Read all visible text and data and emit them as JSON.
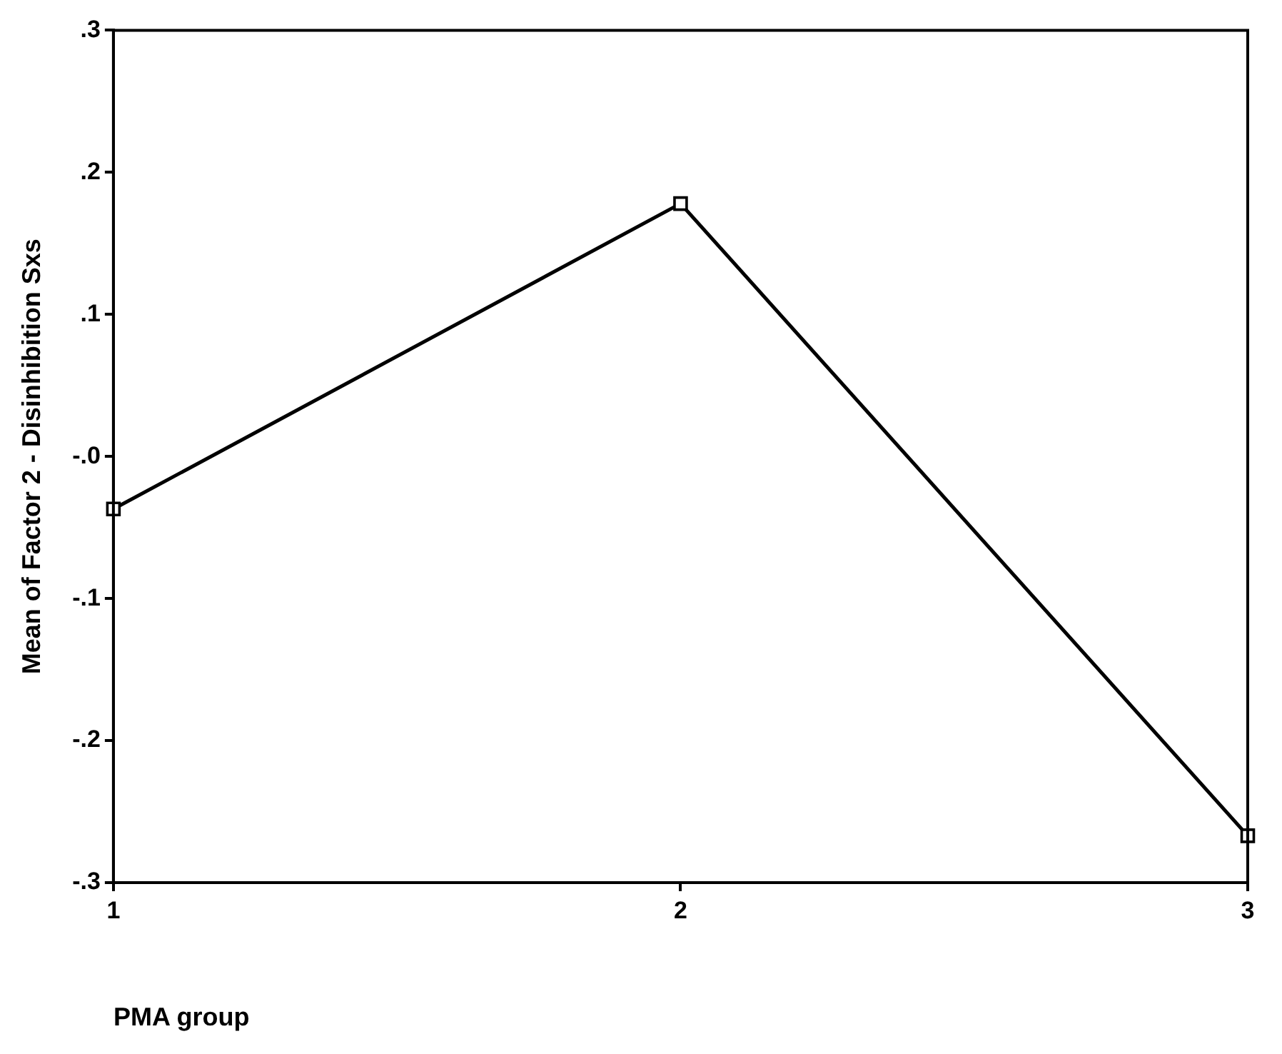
{
  "chart_data": {
    "type": "line",
    "xlabel": "PMA group",
    "ylabel": "Mean of Factor 2 - Disinhibition Sxs",
    "categories": [
      "1",
      "2",
      "3"
    ],
    "series": [
      {
        "color": "#000000",
        "values": [
          -0.037,
          0.178,
          -0.267
        ]
      }
    ],
    "ylim": [
      -0.3,
      0.3
    ],
    "yticks": [
      {
        "value": -0.3,
        "label": "-.3"
      },
      {
        "value": -0.2,
        "label": "-.2"
      },
      {
        "value": -0.1,
        "label": "-.1"
      },
      {
        "value": 0,
        "label": "-.0"
      },
      {
        "value": 0.1,
        "label": ".1"
      },
      {
        "value": 0.2,
        "label": ".2"
      },
      {
        "value": 0.3,
        "label": ".3"
      }
    ],
    "grid": false,
    "legend": false,
    "marker": "square",
    "line_style": "solid"
  }
}
